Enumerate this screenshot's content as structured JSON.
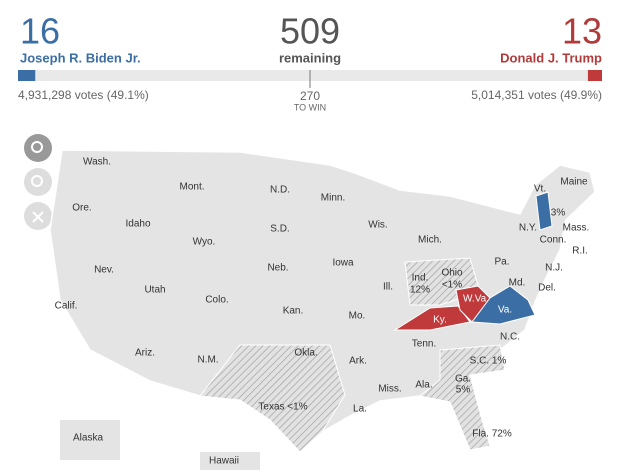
{
  "header": {
    "biden": {
      "electoral": 16,
      "name": "Joseph R. Biden Jr.",
      "votes": "4,931,298 votes (49.1%)"
    },
    "remaining": {
      "electoral": 509,
      "label": "remaining"
    },
    "trump": {
      "electoral": 13,
      "name": "Donald J. Trump",
      "votes": "5,014,351 votes (49.9%)"
    },
    "to_win": {
      "number": "270",
      "label": "TO WIN"
    }
  },
  "map": {
    "labels": [
      "Wash.",
      "Ore.",
      "Idaho",
      "Mont.",
      "Wyo.",
      "N.D.",
      "S.D.",
      "Minn.",
      "Wis.",
      "Mich.",
      "Nev.",
      "Utah",
      "Colo.",
      "Neb.",
      "Iowa",
      "Calif.",
      "Kan.",
      "Mo.",
      "Ill.",
      "Ind.",
      "12%",
      "Ohio",
      "<1%",
      "Pa.",
      "N.Y.",
      "Vt.",
      "3%",
      "Maine",
      "Mass.",
      "Conn.",
      "R.I.",
      "N.J.",
      "Md.",
      "Del.",
      "Va.",
      "W.Va.",
      "Ky.",
      "Tenn.",
      "N.C.",
      "Ariz.",
      "N.M.",
      "Okla.",
      "Ark.",
      "Miss.",
      "Ala.",
      "Ga.",
      "5%",
      "S.C. 1%",
      "Texas <1%",
      "La.",
      "Fla. 72%",
      "Alaska",
      "Hawaii"
    ]
  }
}
